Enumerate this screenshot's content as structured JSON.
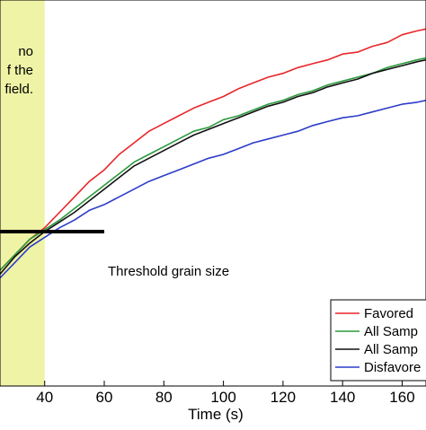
{
  "chart_data": {
    "type": "line",
    "xlabel": "Time (s)",
    "ylabel": "",
    "xlim": [
      25,
      168
    ],
    "ylim": [
      0,
      1
    ],
    "grid": false,
    "legend_placement": "bottom-right",
    "x_ticks": [
      {
        "value": 40,
        "label": "40"
      },
      {
        "value": 60,
        "label": "60"
      },
      {
        "value": 80,
        "label": "80"
      },
      {
        "value": 100,
        "label": "100"
      },
      {
        "value": 120,
        "label": "120"
      },
      {
        "value": 140,
        "label": "140"
      },
      {
        "value": 160,
        "label": "160"
      }
    ],
    "shaded_region": {
      "x_end": 40,
      "color": "#eef3a6",
      "text_lines": [
        "no",
        "f the",
        "field."
      ]
    },
    "threshold": {
      "label": "Threshold grain size",
      "y": 0.4,
      "x_end": 60
    },
    "series": [
      {
        "name": "Favored",
        "color": "#e8262a",
        "x": [
          25,
          30,
          35,
          40,
          45,
          50,
          55,
          60,
          65,
          70,
          75,
          80,
          85,
          90,
          95,
          100,
          105,
          110,
          115,
          120,
          125,
          130,
          135,
          140,
          145,
          150,
          155,
          160,
          165,
          168
        ],
        "y": [
          0.3,
          0.34,
          0.38,
          0.41,
          0.45,
          0.49,
          0.53,
          0.56,
          0.6,
          0.63,
          0.66,
          0.68,
          0.7,
          0.72,
          0.735,
          0.75,
          0.77,
          0.785,
          0.8,
          0.81,
          0.825,
          0.835,
          0.845,
          0.86,
          0.865,
          0.88,
          0.89,
          0.91,
          0.92,
          0.925
        ]
      },
      {
        "name": "All Samp",
        "color": "#2a9a3c",
        "x": [
          25,
          30,
          35,
          40,
          45,
          50,
          55,
          60,
          65,
          70,
          75,
          80,
          85,
          90,
          95,
          100,
          105,
          110,
          115,
          120,
          125,
          130,
          135,
          140,
          145,
          150,
          155,
          160,
          165,
          168
        ],
        "y": [
          0.3,
          0.34,
          0.38,
          0.405,
          0.43,
          0.46,
          0.49,
          0.52,
          0.55,
          0.58,
          0.6,
          0.62,
          0.64,
          0.66,
          0.67,
          0.69,
          0.7,
          0.715,
          0.73,
          0.74,
          0.755,
          0.765,
          0.78,
          0.79,
          0.8,
          0.81,
          0.825,
          0.835,
          0.845,
          0.85
        ]
      },
      {
        "name": "All Samp",
        "color": "#111111",
        "x": [
          25,
          30,
          35,
          40,
          45,
          50,
          55,
          60,
          65,
          70,
          75,
          80,
          85,
          90,
          95,
          100,
          105,
          110,
          115,
          120,
          125,
          130,
          135,
          140,
          145,
          150,
          155,
          160,
          165,
          168
        ],
        "y": [
          0.29,
          0.335,
          0.37,
          0.4,
          0.425,
          0.45,
          0.48,
          0.51,
          0.54,
          0.57,
          0.59,
          0.61,
          0.63,
          0.65,
          0.665,
          0.68,
          0.695,
          0.71,
          0.725,
          0.735,
          0.75,
          0.76,
          0.775,
          0.785,
          0.795,
          0.81,
          0.82,
          0.83,
          0.84,
          0.845
        ]
      },
      {
        "name": "Disfavore",
        "color": "#2d3cc8",
        "x": [
          25,
          30,
          35,
          40,
          45,
          50,
          55,
          60,
          65,
          70,
          75,
          80,
          85,
          90,
          95,
          100,
          105,
          110,
          115,
          120,
          125,
          130,
          135,
          140,
          145,
          150,
          155,
          160,
          165,
          168
        ],
        "y": [
          0.28,
          0.32,
          0.36,
          0.385,
          0.41,
          0.43,
          0.455,
          0.47,
          0.49,
          0.51,
          0.53,
          0.545,
          0.56,
          0.575,
          0.59,
          0.6,
          0.615,
          0.63,
          0.64,
          0.65,
          0.66,
          0.675,
          0.685,
          0.695,
          0.7,
          0.71,
          0.72,
          0.73,
          0.735,
          0.74
        ]
      }
    ]
  }
}
